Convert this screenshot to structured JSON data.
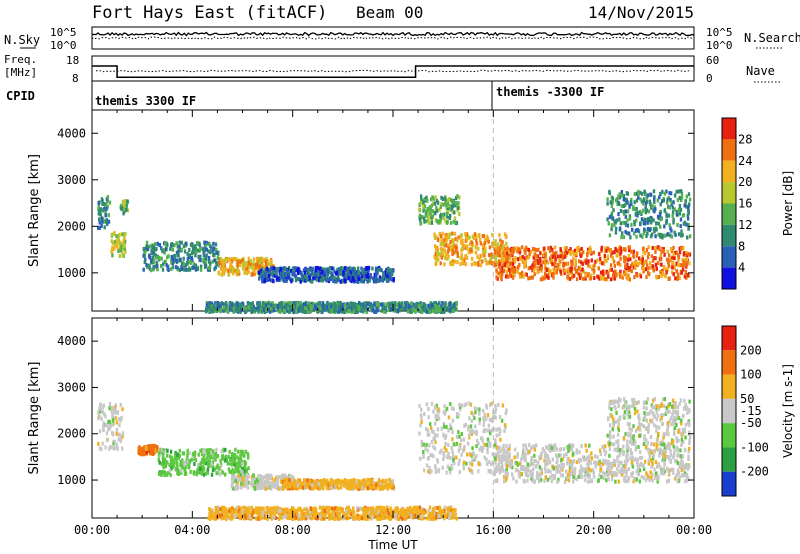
{
  "header": {
    "station": "Fort Hays East (fitACF)",
    "beam": "Beam 00",
    "date": "14/Nov/2015"
  },
  "strips": {
    "nsky": {
      "label": "N.Sky",
      "yticks": [
        "10^5",
        "10^0"
      ]
    },
    "nsearch": {
      "label": "N.Search",
      "yticks": [
        "10^5",
        "10^0"
      ]
    },
    "freq": {
      "label1": "Freq.",
      "label2": "[MHz]",
      "yticks": [
        "18",
        "8"
      ],
      "levels": [
        {
          "t": 0,
          "v": 14
        },
        {
          "t": 1.0,
          "v": 9.5
        },
        {
          "t": 12.9,
          "v": 14
        }
      ]
    },
    "nave": {
      "label": "Nave",
      "yticks": [
        "60",
        "0"
      ]
    },
    "cpid": {
      "label": "CPID",
      "modes": [
        {
          "t": 0,
          "text": "themis 3300 IF"
        },
        {
          "t": 16.0,
          "text": "themis -3300 IF"
        }
      ]
    }
  },
  "chart_data": [
    {
      "type": "heatmap",
      "name": "power",
      "xlabel": "",
      "ylabel": "Slant Range [km]",
      "xlim": [
        0,
        24
      ],
      "ylim": [
        180,
        4500
      ],
      "yticks": [
        1000,
        2000,
        3000,
        4000
      ],
      "marker_time": 16.0,
      "colorbar": {
        "label": "Power [dB]",
        "ticks": [
          4,
          8,
          12,
          16,
          20,
          24,
          28
        ],
        "colors": [
          "#1010e0",
          "#2a5fb8",
          "#2f8a70",
          "#55b050",
          "#b8c830",
          "#f0b020",
          "#f07010",
          "#e82010"
        ]
      },
      "regions": [
        {
          "t": [
            0.2,
            0.7
          ],
          "r": [
            2000,
            2700
          ],
          "level": 2
        },
        {
          "t": [
            0.7,
            1.3
          ],
          "r": [
            1400,
            1900
          ],
          "level": 4
        },
        {
          "t": [
            1.1,
            1.4
          ],
          "r": [
            2300,
            2600
          ],
          "level": 3
        },
        {
          "t": [
            2.0,
            5.0
          ],
          "r": [
            1100,
            1700
          ],
          "level": 2
        },
        {
          "t": [
            5.0,
            7.2
          ],
          "r": [
            1000,
            1350
          ],
          "level": 5
        },
        {
          "t": [
            6.6,
            12.0
          ],
          "r": [
            850,
            1150
          ],
          "level": 1
        },
        {
          "t": [
            13.0,
            14.6
          ],
          "r": [
            2100,
            2700
          ],
          "level": 3
        },
        {
          "t": [
            13.6,
            16.5
          ],
          "r": [
            1200,
            1900
          ],
          "level": 5
        },
        {
          "t": [
            16.0,
            23.8
          ],
          "r": [
            900,
            1600
          ],
          "level": 6
        },
        {
          "t": [
            20.5,
            23.8
          ],
          "r": [
            1800,
            2800
          ],
          "level": 2
        },
        {
          "t": [
            4.5,
            14.5
          ],
          "r": [
            200,
            400
          ],
          "level": 2
        }
      ]
    },
    {
      "type": "heatmap",
      "name": "velocity",
      "xlabel": "Time UT",
      "ylabel": "Slant Range [km]",
      "xlim": [
        0,
        24
      ],
      "ylim": [
        180,
        4500
      ],
      "yticks": [
        1000,
        2000,
        3000,
        4000
      ],
      "xticks": [
        "00:00",
        "04:00",
        "08:00",
        "12:00",
        "16:00",
        "20:00",
        "00:00"
      ],
      "marker_time": 16.0,
      "colorbar": {
        "label": "Velocity [m s-1]",
        "ticks": [
          200,
          100,
          50,
          -15,
          -50,
          -100,
          -200
        ],
        "middle_tick": -15,
        "colors": [
          "#1a3fd0",
          "#2aa040",
          "#5cc840",
          "#c8c8c8",
          "#f0b020",
          "#f07010",
          "#e82010"
        ]
      },
      "regions": [
        {
          "t": [
            0.2,
            1.2
          ],
          "r": [
            1700,
            2700
          ],
          "level": 3
        },
        {
          "t": [
            1.8,
            2.6
          ],
          "r": [
            1600,
            1800
          ],
          "level": 5
        },
        {
          "t": [
            2.6,
            6.2
          ],
          "r": [
            1150,
            1700
          ],
          "level": 2
        },
        {
          "t": [
            5.5,
            8.0
          ],
          "r": [
            850,
            1150
          ],
          "level": 3
        },
        {
          "t": [
            7.5,
            12.0
          ],
          "r": [
            850,
            1050
          ],
          "level": 4
        },
        {
          "t": [
            4.6,
            14.5
          ],
          "r": [
            200,
            450
          ],
          "level": 4
        },
        {
          "t": [
            13.0,
            16.5
          ],
          "r": [
            1200,
            2700
          ],
          "level": 3
        },
        {
          "t": [
            16.0,
            23.8
          ],
          "r": [
            1000,
            1800
          ],
          "level": 3
        },
        {
          "t": [
            20.5,
            23.8
          ],
          "r": [
            1800,
            2800
          ],
          "level": 3
        }
      ]
    }
  ]
}
